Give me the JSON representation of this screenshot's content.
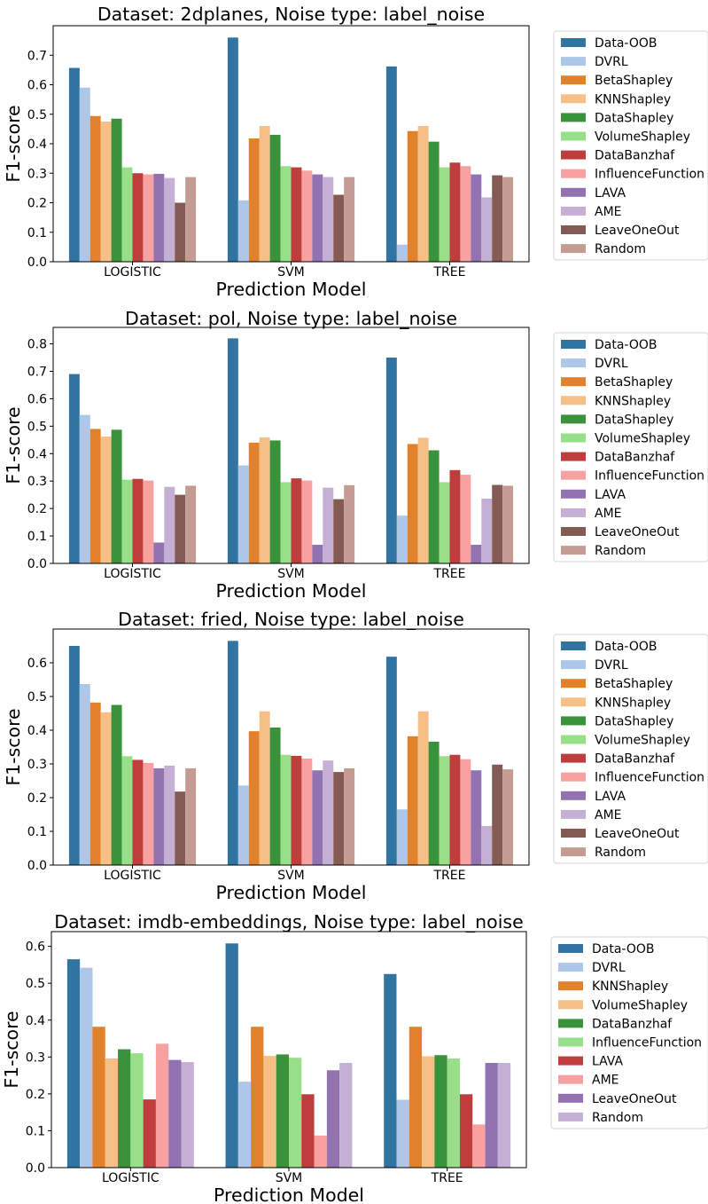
{
  "chart_data": [
    {
      "type": "bar",
      "title": "Dataset: 2dplanes, Noise type: label_noise",
      "xlabel": "Prediction Model",
      "ylabel": "F1-score",
      "categories": [
        "LOGISTIC",
        "SVM",
        "TREE"
      ],
      "ylim": [
        0,
        0.8
      ],
      "yticks": [
        0.0,
        0.1,
        0.2,
        0.3,
        0.4,
        0.5,
        0.6,
        0.7
      ],
      "grid": false,
      "legend_position": "outside-right",
      "series": [
        {
          "name": "Data-OOB",
          "color": "#3274a1",
          "values": [
            0.657,
            0.76,
            0.662
          ]
        },
        {
          "name": "DVRL",
          "color": "#aec7e8",
          "values": [
            0.59,
            0.208,
            0.058
          ]
        },
        {
          "name": "BetaShapley",
          "color": "#e1812c",
          "values": [
            0.494,
            0.418,
            0.443
          ]
        },
        {
          "name": "KNNShapley",
          "color": "#f5bf86",
          "values": [
            0.475,
            0.46,
            0.46
          ]
        },
        {
          "name": "DataShapley",
          "color": "#3a923a",
          "values": [
            0.485,
            0.43,
            0.407
          ]
        },
        {
          "name": "VolumeShapley",
          "color": "#98df8a",
          "values": [
            0.32,
            0.324,
            0.32
          ]
        },
        {
          "name": "DataBanzhaf",
          "color": "#c03d3e",
          "values": [
            0.3,
            0.32,
            0.336
          ]
        },
        {
          "name": "InfluenceFunction",
          "color": "#f7a1a1",
          "values": [
            0.296,
            0.309,
            0.324
          ]
        },
        {
          "name": "LAVA",
          "color": "#9372b2",
          "values": [
            0.298,
            0.296,
            0.296
          ]
        },
        {
          "name": "AME",
          "color": "#c5b0d5",
          "values": [
            0.284,
            0.287,
            0.218
          ]
        },
        {
          "name": "LeaveOneOut",
          "color": "#845b53",
          "values": [
            0.2,
            0.227,
            0.293
          ]
        },
        {
          "name": "Random",
          "color": "#c49c94",
          "values": [
            0.287,
            0.287,
            0.287
          ]
        }
      ]
    },
    {
      "type": "bar",
      "title": "Dataset: pol, Noise type: label_noise",
      "xlabel": "Prediction Model",
      "ylabel": "F1-score",
      "categories": [
        "LOGISTIC",
        "SVM",
        "TREE"
      ],
      "ylim": [
        0,
        0.86
      ],
      "yticks": [
        0.0,
        0.1,
        0.2,
        0.3,
        0.4,
        0.5,
        0.6,
        0.7,
        0.8
      ],
      "grid": false,
      "legend_position": "outside-right",
      "series": [
        {
          "name": "Data-OOB",
          "color": "#3274a1",
          "values": [
            0.69,
            0.82,
            0.75
          ]
        },
        {
          "name": "DVRL",
          "color": "#aec7e8",
          "values": [
            0.541,
            0.357,
            0.174
          ]
        },
        {
          "name": "BetaShapley",
          "color": "#e1812c",
          "values": [
            0.49,
            0.44,
            0.435
          ]
        },
        {
          "name": "KNNShapley",
          "color": "#f5bf86",
          "values": [
            0.462,
            0.459,
            0.458
          ]
        },
        {
          "name": "DataShapley",
          "color": "#3a923a",
          "values": [
            0.487,
            0.448,
            0.412
          ]
        },
        {
          "name": "VolumeShapley",
          "color": "#98df8a",
          "values": [
            0.305,
            0.296,
            0.296
          ]
        },
        {
          "name": "DataBanzhaf",
          "color": "#c03d3e",
          "values": [
            0.308,
            0.31,
            0.34
          ]
        },
        {
          "name": "InfluenceFunction",
          "color": "#f7a1a1",
          "values": [
            0.302,
            0.302,
            0.323
          ]
        },
        {
          "name": "LAVA",
          "color": "#9372b2",
          "values": [
            0.076,
            0.068,
            0.068
          ]
        },
        {
          "name": "AME",
          "color": "#c5b0d5",
          "values": [
            0.279,
            0.276,
            0.236
          ]
        },
        {
          "name": "LeaveOneOut",
          "color": "#845b53",
          "values": [
            0.25,
            0.234,
            0.286
          ]
        },
        {
          "name": "Random",
          "color": "#c49c94",
          "values": [
            0.283,
            0.285,
            0.283
          ]
        }
      ]
    },
    {
      "type": "bar",
      "title": "Dataset: fried, Noise type: label_noise",
      "xlabel": "Prediction Model",
      "ylabel": "F1-score",
      "categories": [
        "LOGISTIC",
        "SVM",
        "TREE"
      ],
      "ylim": [
        0,
        0.7
      ],
      "yticks": [
        0.0,
        0.1,
        0.2,
        0.3,
        0.4,
        0.5,
        0.6
      ],
      "grid": false,
      "legend_position": "outside-right",
      "series": [
        {
          "name": "Data-OOB",
          "color": "#3274a1",
          "values": [
            0.65,
            0.665,
            0.618
          ]
        },
        {
          "name": "DVRL",
          "color": "#aec7e8",
          "values": [
            0.537,
            0.236,
            0.165
          ]
        },
        {
          "name": "BetaShapley",
          "color": "#e1812c",
          "values": [
            0.482,
            0.397,
            0.382
          ]
        },
        {
          "name": "KNNShapley",
          "color": "#f5bf86",
          "values": [
            0.453,
            0.456,
            0.456
          ]
        },
        {
          "name": "DataShapley",
          "color": "#3a923a",
          "values": [
            0.475,
            0.408,
            0.366
          ]
        },
        {
          "name": "VolumeShapley",
          "color": "#98df8a",
          "values": [
            0.323,
            0.327,
            0.323
          ]
        },
        {
          "name": "DataBanzhaf",
          "color": "#c03d3e",
          "values": [
            0.312,
            0.324,
            0.327
          ]
        },
        {
          "name": "InfluenceFunction",
          "color": "#f7a1a1",
          "values": [
            0.303,
            0.316,
            0.314
          ]
        },
        {
          "name": "LAVA",
          "color": "#9372b2",
          "values": [
            0.287,
            0.281,
            0.281
          ]
        },
        {
          "name": "AME",
          "color": "#c5b0d5",
          "values": [
            0.295,
            0.31,
            0.116
          ]
        },
        {
          "name": "LeaveOneOut",
          "color": "#845b53",
          "values": [
            0.218,
            0.276,
            0.298
          ]
        },
        {
          "name": "Random",
          "color": "#c49c94",
          "values": [
            0.287,
            0.287,
            0.284
          ]
        }
      ]
    },
    {
      "type": "bar",
      "title": "Dataset: imdb-embeddings, Noise type: label_noise",
      "xlabel": "Prediction Model",
      "ylabel": "F1-score",
      "categories": [
        "LOGISTIC",
        "SVM",
        "TREE"
      ],
      "ylim": [
        0,
        0.64
      ],
      "yticks": [
        0.0,
        0.1,
        0.2,
        0.3,
        0.4,
        0.5,
        0.6
      ],
      "grid": false,
      "legend_position": "outside-right",
      "series": [
        {
          "name": "Data-OOB",
          "color": "#3274a1",
          "values": [
            0.565,
            0.608,
            0.525
          ]
        },
        {
          "name": "DVRL",
          "color": "#aec7e8",
          "values": [
            0.542,
            0.233,
            0.184
          ]
        },
        {
          "name": "KNNShapley",
          "color": "#e1812c",
          "values": [
            0.382,
            0.382,
            0.382
          ]
        },
        {
          "name": "VolumeShapley",
          "color": "#f5bf86",
          "values": [
            0.296,
            0.303,
            0.302
          ]
        },
        {
          "name": "DataBanzhaf",
          "color": "#3a923a",
          "values": [
            0.321,
            0.307,
            0.305
          ]
        },
        {
          "name": "InfluenceFunction",
          "color": "#98df8a",
          "values": [
            0.31,
            0.298,
            0.296
          ]
        },
        {
          "name": "LAVA",
          "color": "#c03d3e",
          "values": [
            0.185,
            0.199,
            0.199
          ]
        },
        {
          "name": "AME",
          "color": "#f7a1a1",
          "values": [
            0.336,
            0.087,
            0.117
          ]
        },
        {
          "name": "LeaveOneOut",
          "color": "#9372b2",
          "values": [
            0.292,
            0.264,
            0.284
          ]
        },
        {
          "name": "Random",
          "color": "#c5b0d5",
          "values": [
            0.286,
            0.284,
            0.284
          ]
        }
      ]
    }
  ]
}
